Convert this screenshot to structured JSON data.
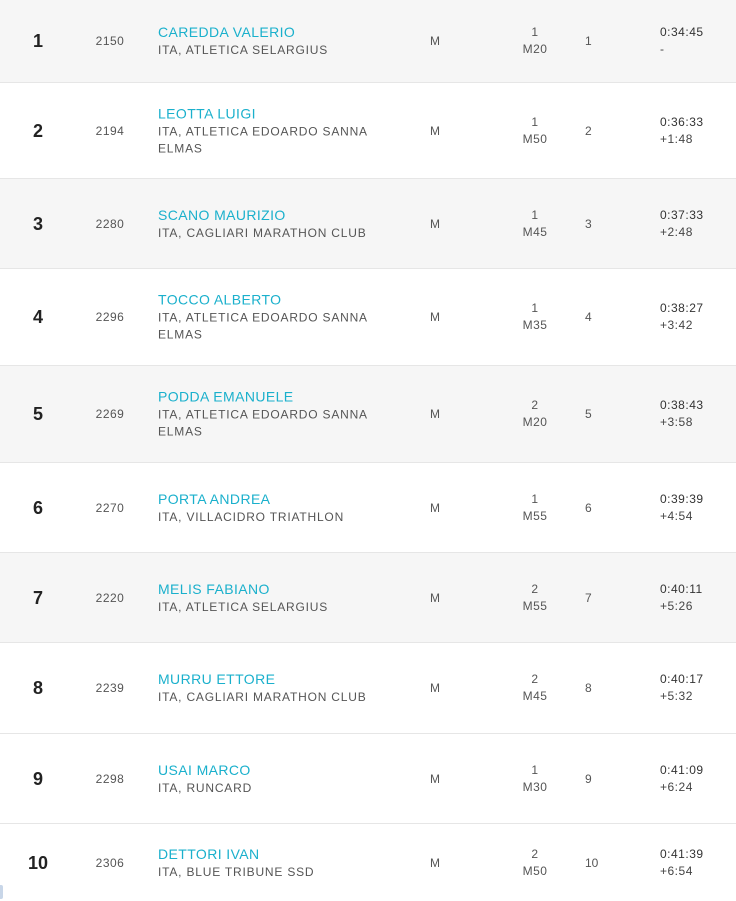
{
  "rows": [
    {
      "pos": "1",
      "bib": "2150",
      "name": "CAREDDA VALERIO",
      "club": "ITA, ATLETICA SELARGIUS",
      "sex": "M",
      "cat_rank": "1",
      "cat": "M20",
      "sex_rank": "1",
      "time": "0:34:45",
      "gap": "-"
    },
    {
      "pos": "2",
      "bib": "2194",
      "name": "LEOTTA LUIGI",
      "club": "ITA, ATLETICA EDOARDO SANNA ELMAS",
      "sex": "M",
      "cat_rank": "1",
      "cat": "M50",
      "sex_rank": "2",
      "time": "0:36:33",
      "gap": "+1:48"
    },
    {
      "pos": "3",
      "bib": "2280",
      "name": "SCANO MAURIZIO",
      "club": "ITA, CAGLIARI MARATHON CLUB",
      "sex": "M",
      "cat_rank": "1",
      "cat": "M45",
      "sex_rank": "3",
      "time": "0:37:33",
      "gap": "+2:48"
    },
    {
      "pos": "4",
      "bib": "2296",
      "name": "TOCCO ALBERTO",
      "club": "ITA, ATLETICA EDOARDO SANNA ELMAS",
      "sex": "M",
      "cat_rank": "1",
      "cat": "M35",
      "sex_rank": "4",
      "time": "0:38:27",
      "gap": "+3:42"
    },
    {
      "pos": "5",
      "bib": "2269",
      "name": "PODDA EMANUELE",
      "club": "ITA, ATLETICA EDOARDO SANNA ELMAS",
      "sex": "M",
      "cat_rank": "2",
      "cat": "M20",
      "sex_rank": "5",
      "time": "0:38:43",
      "gap": "+3:58"
    },
    {
      "pos": "6",
      "bib": "2270",
      "name": "PORTA ANDREA",
      "club": "ITA, VILLACIDRO TRIATHLON",
      "sex": "M",
      "cat_rank": "1",
      "cat": "M55",
      "sex_rank": "6",
      "time": "0:39:39",
      "gap": "+4:54"
    },
    {
      "pos": "7",
      "bib": "2220",
      "name": "MELIS FABIANO",
      "club": "ITA, ATLETICA SELARGIUS",
      "sex": "M",
      "cat_rank": "2",
      "cat": "M55",
      "sex_rank": "7",
      "time": "0:40:11",
      "gap": "+5:26"
    },
    {
      "pos": "8",
      "bib": "2239",
      "name": "MURRU ETTORE",
      "club": "ITA, CAGLIARI MARATHON CLUB",
      "sex": "M",
      "cat_rank": "2",
      "cat": "M45",
      "sex_rank": "8",
      "time": "0:40:17",
      "gap": "+5:32"
    },
    {
      "pos": "9",
      "bib": "2298",
      "name": "USAI MARCO",
      "club": "ITA, RUNCARD",
      "sex": "M",
      "cat_rank": "1",
      "cat": "M30",
      "sex_rank": "9",
      "time": "0:41:09",
      "gap": "+6:24"
    },
    {
      "pos": "10",
      "bib": "2306",
      "name": "DETTORI IVAN",
      "club": "ITA, BLUE TRIBUNE SSD",
      "sex": "M",
      "cat_rank": "2",
      "cat": "M50",
      "sex_rank": "10",
      "time": "0:41:39",
      "gap": "+6:54"
    }
  ],
  "colors": {
    "name_link": "#1ab0cc",
    "row_shade": "#f6f6f6",
    "row_white": "#ffffff",
    "divider": "#e6e6e6"
  }
}
